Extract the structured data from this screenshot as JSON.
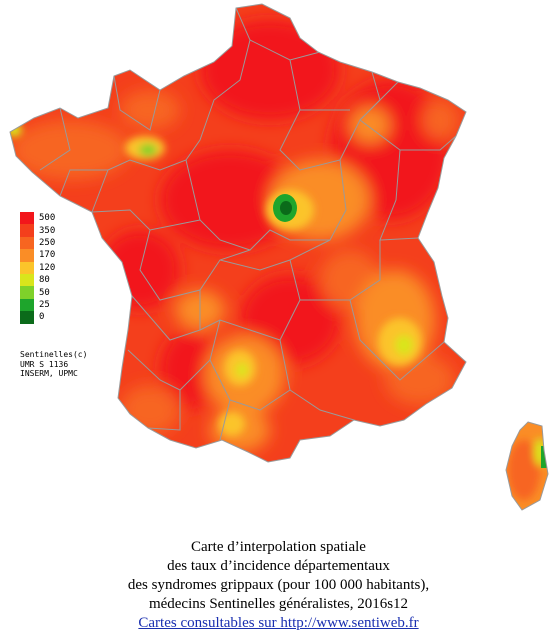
{
  "legend": {
    "items": [
      {
        "label": "500",
        "color": "#f2161b"
      },
      {
        "label": "350",
        "color": "#f43f1c"
      },
      {
        "label": "250",
        "color": "#f76520"
      },
      {
        "label": "170",
        "color": "#fa8d26"
      },
      {
        "label": "120",
        "color": "#fbc42a"
      },
      {
        "label": "80",
        "color": "#d9e51c"
      },
      {
        "label": "50",
        "color": "#7fd12a"
      },
      {
        "label": "25",
        "color": "#1ea52c"
      },
      {
        "label": "0",
        "color": "#0b6b1a"
      }
    ]
  },
  "credits": {
    "line1": "Sentinelles(c)",
    "line2": "UMR S 1136",
    "line3": "INSERM, UPMC"
  },
  "caption": {
    "line1": "Carte d’interpolation spatiale",
    "line2": "des taux d’incidence départementaux",
    "line3": "des syndromes grippaux (pour 100 000 habitants),",
    "line4": "médecins Sentinelles généralistes, 2016s12",
    "link_text": "Cartes consultables sur http://www.sentiweb.fr"
  },
  "colors": {
    "border": "#9a9a9a",
    "sea": "#ffffff"
  }
}
